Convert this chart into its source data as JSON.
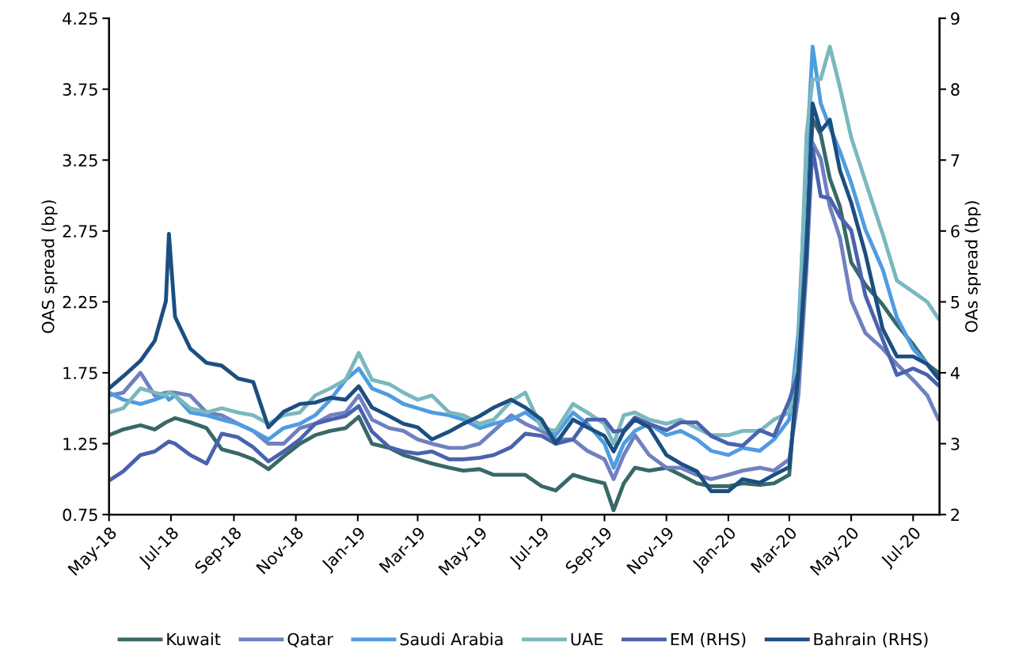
{
  "chart_data": {
    "type": "line",
    "ylabel": "OAS spread (bp)",
    "y2label": "OAs spread (bp)",
    "x": [
      "2018-05-01",
      "2018-05-15",
      "2018-06-01",
      "2018-06-15",
      "2018-06-26",
      "2018-06-29",
      "2018-07-05",
      "2018-07-20",
      "2018-08-05",
      "2018-08-20",
      "2018-09-05",
      "2018-09-20",
      "2018-10-05",
      "2018-10-20",
      "2018-11-05",
      "2018-11-20",
      "2018-12-05",
      "2018-12-20",
      "2019-01-02",
      "2019-01-15",
      "2019-02-01",
      "2019-02-15",
      "2019-03-01",
      "2019-03-15",
      "2019-04-01",
      "2019-04-15",
      "2019-05-01",
      "2019-05-15",
      "2019-06-01",
      "2019-06-15",
      "2019-07-01",
      "2019-07-15",
      "2019-08-01",
      "2019-08-15",
      "2019-09-01",
      "2019-09-10",
      "2019-09-20",
      "2019-10-01",
      "2019-10-15",
      "2019-11-01",
      "2019-11-15",
      "2019-12-01",
      "2019-12-15",
      "2020-01-01",
      "2020-01-15",
      "2020-02-01",
      "2020-02-15",
      "2020-03-01",
      "2020-03-10",
      "2020-03-18",
      "2020-03-24",
      "2020-04-01",
      "2020-04-10",
      "2020-04-20",
      "2020-05-01",
      "2020-05-15",
      "2020-06-01",
      "2020-06-15",
      "2020-07-01",
      "2020-07-15",
      "2020-07-26"
    ],
    "xlim": [
      "2018-05-01",
      "2020-07-27"
    ],
    "xticks": [
      {
        "value": "2018-05-01",
        "label": "May-18"
      },
      {
        "value": "2018-07-01",
        "label": "Jul-18"
      },
      {
        "value": "2018-09-01",
        "label": "Sep-18"
      },
      {
        "value": "2018-11-01",
        "label": "Nov-18"
      },
      {
        "value": "2019-01-01",
        "label": "Jan-19"
      },
      {
        "value": "2019-03-01",
        "label": "Mar-19"
      },
      {
        "value": "2019-05-01",
        "label": "May-19"
      },
      {
        "value": "2019-07-01",
        "label": "Jul-19"
      },
      {
        "value": "2019-09-01",
        "label": "Sep-19"
      },
      {
        "value": "2019-11-01",
        "label": "Nov-19"
      },
      {
        "value": "2020-01-01",
        "label": "Jan-20"
      },
      {
        "value": "2020-03-01",
        "label": "Mar-20"
      },
      {
        "value": "2020-05-01",
        "label": "May-20"
      },
      {
        "value": "2020-07-01",
        "label": "Jul-20"
      }
    ],
    "ylim": [
      0.75,
      4.25
    ],
    "yticks": [
      0.75,
      1.25,
      1.75,
      2.25,
      2.75,
      3.25,
      3.75,
      4.25
    ],
    "y2lim": [
      2,
      9
    ],
    "y2ticks": [
      2,
      3,
      4,
      5,
      6,
      7,
      8,
      9
    ],
    "grid": false,
    "legend": "bottom",
    "marker": "none",
    "line_style": "solid",
    "series": [
      {
        "name": "Kuwait",
        "color": "#386868",
        "values": [
          1.31,
          1.35,
          1.38,
          1.35,
          1.4,
          1.41,
          1.43,
          1.4,
          1.36,
          1.21,
          1.18,
          1.14,
          1.07,
          1.16,
          1.25,
          1.31,
          1.34,
          1.36,
          1.44,
          1.25,
          1.22,
          1.17,
          1.14,
          1.11,
          1.08,
          1.06,
          1.07,
          1.03,
          1.03,
          1.03,
          0.95,
          0.92,
          1.03,
          1.0,
          0.97,
          0.78,
          0.97,
          1.08,
          1.06,
          1.08,
          1.03,
          0.97,
          0.95,
          0.95,
          0.97,
          0.96,
          0.97,
          1.03,
          1.86,
          2.7,
          3.54,
          3.43,
          3.12,
          2.92,
          2.53,
          2.37,
          2.23,
          2.09,
          1.95,
          1.81,
          1.75
        ]
      },
      {
        "name": "Qatar",
        "color": "#7080c0",
        "values": [
          1.59,
          1.61,
          1.75,
          1.59,
          1.61,
          1.61,
          1.61,
          1.59,
          1.47,
          1.45,
          1.39,
          1.34,
          1.25,
          1.25,
          1.36,
          1.39,
          1.45,
          1.47,
          1.59,
          1.42,
          1.36,
          1.34,
          1.28,
          1.25,
          1.22,
          1.22,
          1.25,
          1.34,
          1.45,
          1.39,
          1.34,
          1.28,
          1.28,
          1.2,
          1.14,
          1.0,
          1.17,
          1.31,
          1.17,
          1.08,
          1.08,
          1.03,
          1.0,
          1.03,
          1.06,
          1.08,
          1.06,
          1.14,
          1.59,
          2.48,
          3.37,
          3.26,
          2.92,
          2.7,
          2.26,
          2.03,
          1.92,
          1.81,
          1.7,
          1.59,
          1.42
        ]
      },
      {
        "name": "Saudi Arabia",
        "color": "#4f9ce0",
        "values": [
          1.61,
          1.56,
          1.53,
          1.56,
          1.59,
          1.56,
          1.59,
          1.47,
          1.45,
          1.42,
          1.39,
          1.34,
          1.28,
          1.36,
          1.39,
          1.45,
          1.56,
          1.7,
          1.78,
          1.64,
          1.59,
          1.53,
          1.5,
          1.47,
          1.45,
          1.42,
          1.36,
          1.39,
          1.42,
          1.47,
          1.39,
          1.31,
          1.47,
          1.39,
          1.25,
          1.08,
          1.25,
          1.34,
          1.39,
          1.31,
          1.34,
          1.28,
          1.2,
          1.17,
          1.22,
          1.2,
          1.28,
          1.42,
          2.03,
          3.26,
          4.05,
          3.65,
          3.48,
          3.31,
          3.09,
          2.76,
          2.48,
          2.14,
          1.92,
          1.81,
          1.71
        ]
      },
      {
        "name": "UAE",
        "color": "#7ab8be",
        "values": [
          1.47,
          1.5,
          1.64,
          1.61,
          1.59,
          1.61,
          1.59,
          1.5,
          1.47,
          1.5,
          1.47,
          1.45,
          1.39,
          1.45,
          1.47,
          1.59,
          1.64,
          1.7,
          1.89,
          1.7,
          1.67,
          1.61,
          1.56,
          1.59,
          1.47,
          1.45,
          1.39,
          1.42,
          1.55,
          1.61,
          1.36,
          1.34,
          1.53,
          1.47,
          1.39,
          1.25,
          1.45,
          1.47,
          1.42,
          1.39,
          1.42,
          1.36,
          1.31,
          1.31,
          1.34,
          1.34,
          1.42,
          1.47,
          1.86,
          3.43,
          3.82,
          3.82,
          4.05,
          3.76,
          3.41,
          3.1,
          2.73,
          2.4,
          2.32,
          2.25,
          2.13
        ]
      },
      {
        "name": "EM (RHS)",
        "color": "#4a62ae",
        "axis": "y2",
        "values": [
          2.48,
          2.61,
          2.84,
          2.89,
          3.0,
          3.03,
          3.0,
          2.84,
          2.72,
          3.14,
          3.09,
          2.95,
          2.75,
          2.89,
          3.06,
          3.28,
          3.34,
          3.39,
          3.53,
          3.17,
          2.95,
          2.89,
          2.86,
          2.89,
          2.78,
          2.78,
          2.8,
          2.84,
          2.95,
          3.14,
          3.11,
          3.0,
          3.06,
          3.34,
          3.34,
          3.17,
          3.19,
          3.37,
          3.28,
          3.19,
          3.3,
          3.3,
          3.11,
          3.0,
          2.97,
          3.19,
          3.11,
          3.61,
          4.01,
          5.9,
          7.16,
          6.49,
          6.46,
          6.2,
          6.01,
          5.09,
          4.47,
          3.97,
          4.06,
          3.97,
          3.82
        ]
      },
      {
        "name": "Bahrain (RHS)",
        "color": "#1c4e80",
        "axis": "y2",
        "values": [
          3.78,
          3.95,
          4.17,
          4.45,
          5.01,
          5.96,
          4.79,
          4.34,
          4.14,
          4.1,
          3.92,
          3.87,
          3.23,
          3.45,
          3.56,
          3.58,
          3.65,
          3.62,
          3.81,
          3.51,
          3.39,
          3.28,
          3.23,
          3.06,
          3.17,
          3.28,
          3.39,
          3.51,
          3.62,
          3.51,
          3.34,
          3.0,
          3.34,
          3.23,
          3.11,
          2.89,
          3.17,
          3.34,
          3.23,
          2.84,
          2.72,
          2.61,
          2.33,
          2.33,
          2.5,
          2.45,
          2.56,
          2.67,
          4.01,
          5.68,
          7.8,
          7.41,
          7.57,
          6.85,
          6.4,
          5.68,
          4.62,
          4.23,
          4.23,
          4.12,
          3.92
        ]
      }
    ]
  }
}
